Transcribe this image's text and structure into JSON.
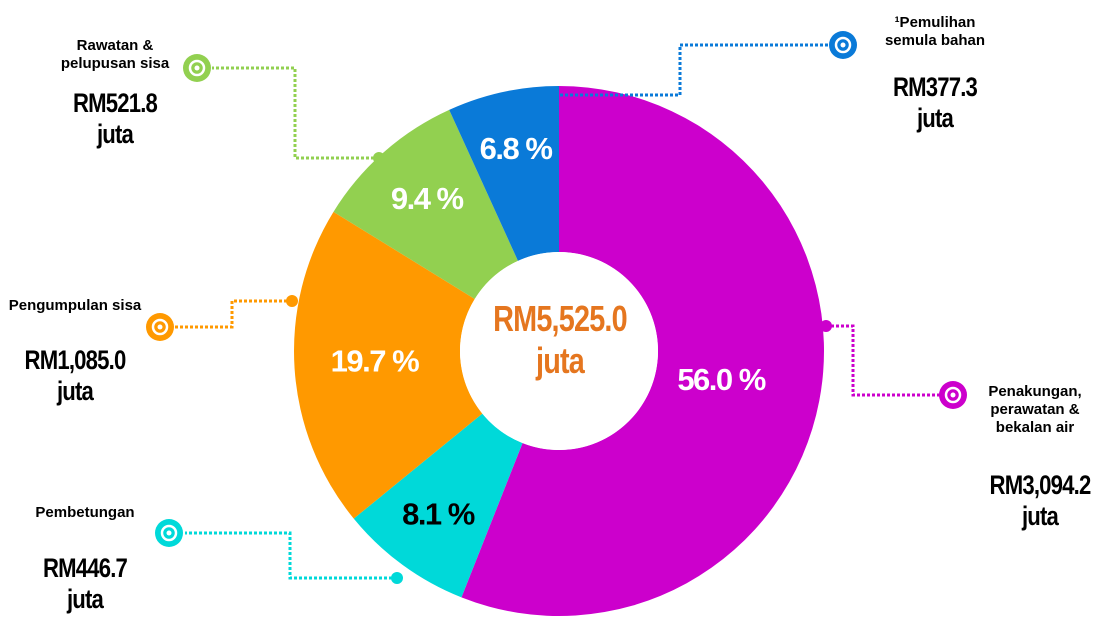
{
  "chart_data": {
    "type": "pie",
    "donut": true,
    "categories": [
      "Penakungan, perawatan & bekalan air",
      "Pembetungan",
      "Pengumpulan sisa",
      "Rawatan & pelupusan sisa",
      "¹Pemulihan semula bahan"
    ],
    "values": [
      56.0,
      8.1,
      19.7,
      9.4,
      6.8
    ],
    "value_labels": [
      "56.0 %",
      "8.1 %",
      "19.7 %",
      "9.4 %",
      "6.8 %"
    ],
    "amount_labels": [
      "RM3,094.2 juta",
      "RM446.7 juta",
      "RM1,085.0 juta",
      "RM521.8 juta",
      "RM377.3 juta"
    ],
    "colors": [
      "#cc00cc",
      "#00d9d9",
      "#ff9900",
      "#92d050",
      "#0a7ad8"
    ],
    "center_label": "RM5,525.0 juta"
  }
}
